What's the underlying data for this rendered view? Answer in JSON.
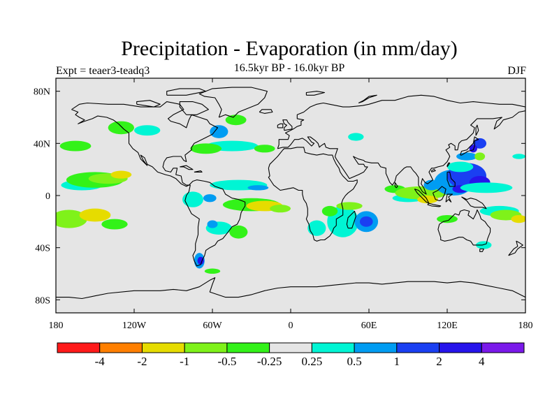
{
  "title": "Precipitation - Evaporation (in mm/day)",
  "subtitle": "16.5kyr BP - 16.0kyr BP",
  "experiment_label": "Expt = teaer3-teadq3",
  "season": "DJF",
  "colors": {
    "land_ocean_background": "#e5e5e5",
    "coastline": "#000000"
  },
  "chart_data": {
    "type": "heatmap",
    "title": "Precipitation - Evaporation (in mm/day)",
    "projection": "cylindrical-equidistant",
    "xlim": [
      -180,
      180
    ],
    "ylim": [
      -90,
      90
    ],
    "x_ticks": [
      {
        "value": -180,
        "label": "180"
      },
      {
        "value": -120,
        "label": "120W"
      },
      {
        "value": -60,
        "label": "60W"
      },
      {
        "value": 0,
        "label": "0"
      },
      {
        "value": 60,
        "label": "60E"
      },
      {
        "value": 120,
        "label": "120E"
      },
      {
        "value": 180,
        "label": "180"
      }
    ],
    "y_ticks": [
      {
        "value": 80,
        "label": "80N"
      },
      {
        "value": 40,
        "label": "40N"
      },
      {
        "value": 0,
        "label": "0"
      },
      {
        "value": -40,
        "label": "40S"
      },
      {
        "value": -80,
        "label": "80S"
      }
    ],
    "colorbar": {
      "boundaries": [
        "-4",
        "-2",
        "-1",
        "-0.5",
        "-0.25",
        "0.25",
        "0.5",
        "1",
        "2",
        "4"
      ],
      "colors": [
        "#ff1a1a",
        "#ff7f00",
        "#e6dc00",
        "#7ff21a",
        "#33f219",
        "#e5e5e5",
        "#00f5d4",
        "#009cf2",
        "#1a3ff2",
        "#2614eb",
        "#7a19ea"
      ]
    },
    "anomaly_regions": [
      {
        "lon": -170,
        "lat": -18,
        "rx": 14,
        "ry": 7,
        "value": -0.75
      },
      {
        "lon": -150,
        "lat": -15,
        "rx": 12,
        "ry": 5,
        "value": -1.5
      },
      {
        "lon": -135,
        "lat": -22,
        "rx": 10,
        "ry": 4,
        "value": -0.4
      },
      {
        "lon": -160,
        "lat": 8,
        "rx": 16,
        "ry": 4,
        "value": 0.4
      },
      {
        "lon": -150,
        "lat": 12,
        "rx": 22,
        "ry": 6,
        "value": -0.4
      },
      {
        "lon": -140,
        "lat": 13,
        "rx": 15,
        "ry": 4,
        "value": -0.75
      },
      {
        "lon": -130,
        "lat": 16,
        "rx": 8,
        "ry": 3,
        "value": -1.5
      },
      {
        "lon": -165,
        "lat": 38,
        "rx": 12,
        "ry": 4,
        "value": -0.4
      },
      {
        "lon": -45,
        "lat": 38,
        "rx": 20,
        "ry": 4,
        "value": 0.4
      },
      {
        "lon": -65,
        "lat": 36,
        "rx": 12,
        "ry": 4,
        "value": -0.4
      },
      {
        "lon": -20,
        "lat": 36,
        "rx": 8,
        "ry": 3,
        "value": -0.4
      },
      {
        "lon": -130,
        "lat": 52,
        "rx": 10,
        "ry": 5,
        "value": -0.4
      },
      {
        "lon": -110,
        "lat": 50,
        "rx": 10,
        "ry": 4,
        "value": 0.4
      },
      {
        "lon": -42,
        "lat": 58,
        "rx": 8,
        "ry": 4,
        "value": -0.4
      },
      {
        "lon": -55,
        "lat": 49,
        "rx": 7,
        "ry": 5,
        "value": 0.75
      },
      {
        "lon": -40,
        "lat": 8,
        "rx": 22,
        "ry": 4,
        "value": 0.4
      },
      {
        "lon": -25,
        "lat": 6,
        "rx": 8,
        "ry": 2,
        "value": 0.75
      },
      {
        "lon": -30,
        "lat": -7,
        "rx": 22,
        "ry": 5,
        "value": -0.4
      },
      {
        "lon": -20,
        "lat": -8,
        "rx": 14,
        "ry": 4,
        "value": -1.5
      },
      {
        "lon": -8,
        "lat": -10,
        "rx": 8,
        "ry": 3,
        "value": -0.75
      },
      {
        "lon": -75,
        "lat": -3,
        "rx": 8,
        "ry": 6,
        "value": 0.4
      },
      {
        "lon": -62,
        "lat": -2,
        "rx": 5,
        "ry": 3,
        "value": 0.75
      },
      {
        "lon": -55,
        "lat": -25,
        "rx": 10,
        "ry": 5,
        "value": 0.4
      },
      {
        "lon": -60,
        "lat": -22,
        "rx": 4,
        "ry": 3,
        "value": 0.75
      },
      {
        "lon": -40,
        "lat": -28,
        "rx": 7,
        "ry": 5,
        "value": -0.4
      },
      {
        "lon": -70,
        "lat": -50,
        "rx": 4,
        "ry": 6,
        "value": 0.75
      },
      {
        "lon": -69,
        "lat": -50,
        "rx": 2.5,
        "ry": 3,
        "value": 3
      },
      {
        "lon": -60,
        "lat": -58,
        "rx": 6,
        "ry": 2,
        "value": -0.4
      },
      {
        "lon": 20,
        "lat": -25,
        "rx": 7,
        "ry": 6,
        "value": 0.4
      },
      {
        "lon": 40,
        "lat": -20,
        "rx": 12,
        "ry": 12,
        "value": 0.4
      },
      {
        "lon": 58,
        "lat": -20,
        "rx": 9,
        "ry": 8,
        "value": 0.75
      },
      {
        "lon": 58,
        "lat": -20,
        "rx": 5,
        "ry": 4,
        "value": 1.5
      },
      {
        "lon": 30,
        "lat": -12,
        "rx": 6,
        "ry": 4,
        "value": -0.4
      },
      {
        "lon": 45,
        "lat": -8,
        "rx": 10,
        "ry": 3,
        "value": -0.75
      },
      {
        "lon": 90,
        "lat": -2,
        "rx": 12,
        "ry": 3,
        "value": 0.4
      },
      {
        "lon": 80,
        "lat": 5,
        "rx": 8,
        "ry": 3,
        "value": -0.4
      },
      {
        "lon": 100,
        "lat": 2,
        "rx": 20,
        "ry": 5,
        "value": -0.75
      },
      {
        "lon": 105,
        "lat": -3,
        "rx": 8,
        "ry": 3,
        "value": -1.5
      },
      {
        "lon": 108,
        "lat": 8,
        "rx": 6,
        "ry": 4,
        "value": 0.75
      },
      {
        "lon": 125,
        "lat": 10,
        "rx": 15,
        "ry": 10,
        "value": 0.75
      },
      {
        "lon": 135,
        "lat": 15,
        "rx": 15,
        "ry": 10,
        "value": 1.5
      },
      {
        "lon": 145,
        "lat": 10,
        "rx": 8,
        "ry": 5,
        "value": 3
      },
      {
        "lon": 130,
        "lat": 5,
        "rx": 6,
        "ry": 3,
        "value": 3
      },
      {
        "lon": 150,
        "lat": 6,
        "rx": 20,
        "ry": 4,
        "value": 0.4
      },
      {
        "lon": 130,
        "lat": 22,
        "rx": 10,
        "ry": 4,
        "value": 0.4
      },
      {
        "lon": 135,
        "lat": 30,
        "rx": 8,
        "ry": 3,
        "value": 0.75
      },
      {
        "lon": 145,
        "lat": 30,
        "rx": 4,
        "ry": 3,
        "value": -0.75
      },
      {
        "lon": 160,
        "lat": -12,
        "rx": 15,
        "ry": 4,
        "value": 0.4
      },
      {
        "lon": 165,
        "lat": -15,
        "rx": 12,
        "ry": 4,
        "value": -0.75
      },
      {
        "lon": 175,
        "lat": -18,
        "rx": 6,
        "ry": 3,
        "value": -1.5
      },
      {
        "lon": 120,
        "lat": -18,
        "rx": 8,
        "ry": 3,
        "value": -0.4
      },
      {
        "lon": 148,
        "lat": -38,
        "rx": 6,
        "ry": 3,
        "value": 0.4
      },
      {
        "lon": 145,
        "lat": 40,
        "rx": 5,
        "ry": 4,
        "value": 1.5
      },
      {
        "lon": 140,
        "lat": 36,
        "rx": 3,
        "ry": 3,
        "value": 3
      },
      {
        "lon": 175,
        "lat": 30,
        "rx": 5,
        "ry": 2,
        "value": 0.4
      },
      {
        "lon": 50,
        "lat": 45,
        "rx": 6,
        "ry": 3,
        "value": 0.4
      }
    ]
  }
}
